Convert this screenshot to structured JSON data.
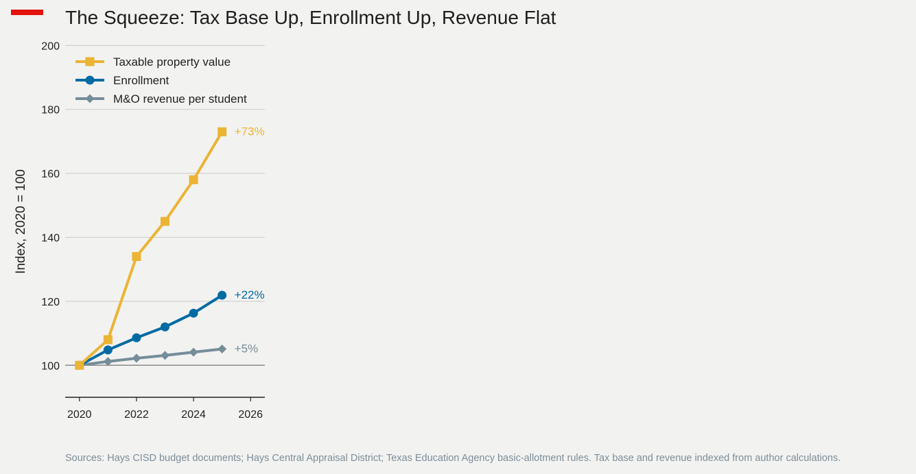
{
  "accent_color": "#e3120b",
  "title": "The Squeeze: Tax Base Up, Enrollment Up, Revenue Flat",
  "source": "Sources: Hays CISD budget documents; Hays Central Appraisal District; Texas Education Agency basic-allotment rules. Tax base and revenue indexed from author calculations.",
  "chart_data": {
    "type": "line",
    "title": "The Squeeze: Tax Base Up, Enrollment Up, Revenue Flat",
    "xlabel": "",
    "ylabel": "Index, 2020 = 100",
    "xlim": [
      2019.5,
      2026.5
    ],
    "ylim": [
      90,
      202
    ],
    "x_ticks": [
      2020,
      2022,
      2024,
      2026
    ],
    "y_ticks": [
      100,
      120,
      140,
      160,
      180,
      200
    ],
    "grid": "horizontal",
    "baseline": 100,
    "legend_position": "top-left",
    "x": [
      2020,
      2021,
      2022,
      2023,
      2024,
      2025
    ],
    "series": [
      {
        "name": "Taxable property value",
        "values": [
          100,
          108,
          134,
          145,
          158,
          173
        ],
        "color": "#ebb434",
        "marker": "square",
        "end_label": "+73%"
      },
      {
        "name": "Enrollment",
        "values": [
          100,
          104.8,
          108.6,
          112,
          116.3,
          121.9
        ],
        "color": "#006ba2",
        "marker": "circle",
        "end_label": "+22%"
      },
      {
        "name": "M&O revenue per student",
        "values": [
          100,
          101.2,
          102.2,
          103.1,
          104.1,
          105.1
        ],
        "color": "#758d99",
        "marker": "diamond",
        "end_label": "+5%"
      }
    ]
  }
}
